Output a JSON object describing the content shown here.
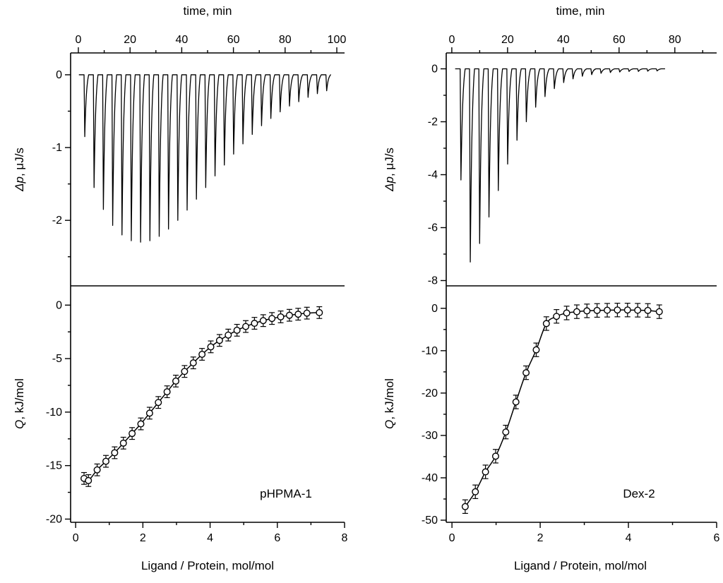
{
  "panel_labels": [
    "pHPMA-1",
    "Dex-2"
  ],
  "chart_data": [
    {
      "id": "pHPMA-1-thermogram",
      "type": "line",
      "xlabel": "time, min",
      "ylabel_italic": "Δp",
      "ylabel_rest": ", μJ/s",
      "xlim": [
        -3,
        103
      ],
      "xticks": [
        0,
        20,
        40,
        60,
        80,
        100
      ],
      "xminor": [
        10,
        30,
        50,
        70,
        90
      ],
      "ylim": [
        0.3,
        -2.9
      ],
      "yticks": [
        0,
        -1,
        -2
      ],
      "yminor": [
        -0.5,
        -1.5,
        -2.5
      ],
      "baseline": 0,
      "trace_start": 0.2,
      "trace_end": 97.5,
      "peak_start": 2.2,
      "peak_spacing": 3.6,
      "peak_depths": [
        -0.85,
        -1.55,
        -1.85,
        -2.07,
        -2.2,
        -2.28,
        -2.3,
        -2.28,
        -2.22,
        -2.12,
        -2.0,
        -1.86,
        -1.71,
        -1.55,
        -1.39,
        -1.24,
        -1.09,
        -0.95,
        -0.82,
        -0.7,
        -0.6,
        -0.51,
        -0.43,
        -0.37,
        -0.31,
        -0.26,
        -0.22
      ]
    },
    {
      "id": "pHPMA-1-binding",
      "type": "scatter",
      "marker": "open-circle",
      "xlabel": "Ligand / Protein, mol/mol",
      "ylabel_italic": "Q",
      "ylabel_rest": ", kJ/mol",
      "xlim": [
        -0.15,
        8.0
      ],
      "xticks": [
        0,
        2,
        4,
        6,
        8
      ],
      "xminor": [
        1,
        3,
        5,
        7
      ],
      "ylim": [
        1.8,
        -20.3
      ],
      "yticks": [
        0,
        -5,
        -10,
        -15,
        -20
      ],
      "yminor": [
        -2.5,
        -7.5,
        -12.5,
        -17.5
      ],
      "yerr": 0.55,
      "x": [
        0.25,
        0.38,
        0.64,
        0.9,
        1.16,
        1.42,
        1.68,
        1.94,
        2.2,
        2.46,
        2.72,
        2.98,
        3.24,
        3.5,
        3.76,
        4.02,
        4.28,
        4.54,
        4.8,
        5.06,
        5.32,
        5.58,
        5.84,
        6.1,
        6.36,
        6.62,
        6.88,
        7.25
      ],
      "y": [
        -16.2,
        -16.4,
        -15.4,
        -14.6,
        -13.8,
        -12.9,
        -12.0,
        -11.1,
        -10.1,
        -9.1,
        -8.1,
        -7.1,
        -6.2,
        -5.4,
        -4.6,
        -3.9,
        -3.3,
        -2.8,
        -2.35,
        -2.0,
        -1.7,
        -1.45,
        -1.25,
        -1.1,
        -0.95,
        -0.85,
        -0.75,
        -0.7
      ]
    },
    {
      "id": "Dex-2-thermogram",
      "type": "line",
      "xlabel": "time, min",
      "ylabel_italic": "Δp",
      "ylabel_rest": ", μJ/s",
      "xlim": [
        -2,
        95
      ],
      "xticks": [
        0,
        20,
        40,
        60,
        80
      ],
      "xminor": [
        10,
        30,
        50,
        70,
        90
      ],
      "ylim": [
        0.6,
        -8.2
      ],
      "yticks": [
        0,
        -2,
        -4,
        -6,
        -8
      ],
      "yminor": [
        -1,
        -3,
        -5,
        -7
      ],
      "baseline": 0,
      "trace_start": 1.2,
      "trace_end": 76.5,
      "peak_start": 3.0,
      "peak_spacing": 3.35,
      "peak_depths": [
        -4.2,
        -7.3,
        -6.6,
        -5.6,
        -4.6,
        -3.6,
        -2.7,
        -2.0,
        -1.45,
        -1.05,
        -0.75,
        -0.52,
        -0.38,
        -0.28,
        -0.22,
        -0.17,
        -0.14,
        -0.12,
        -0.1,
        -0.1,
        -0.09,
        -0.08
      ]
    },
    {
      "id": "Dex-2-binding",
      "type": "scatter",
      "marker": "open-circle",
      "xlabel": "Ligand / Protein, mol/mol",
      "ylabel_italic": "Q",
      "ylabel_rest": ", kJ/mol",
      "xlim": [
        -0.13,
        6.0
      ],
      "xticks": [
        0,
        2,
        4,
        6
      ],
      "xminor": [
        1,
        3,
        5
      ],
      "ylim": [
        5.3,
        -50.5
      ],
      "yticks": [
        0,
        -10,
        -20,
        -30,
        -40,
        -50
      ],
      "yminor": [
        -5,
        -15,
        -25,
        -35,
        -45
      ],
      "yerr": 1.6,
      "x": [
        0.3,
        0.53,
        0.76,
        0.99,
        1.22,
        1.45,
        1.68,
        1.91,
        2.14,
        2.37,
        2.6,
        2.83,
        3.06,
        3.29,
        3.52,
        3.75,
        3.98,
        4.21,
        4.44,
        4.7
      ],
      "y": [
        -46.8,
        -43.3,
        -38.6,
        -34.9,
        -29.2,
        -22.1,
        -15.2,
        -9.8,
        -3.6,
        -1.9,
        -1.1,
        -0.8,
        -0.6,
        -0.5,
        -0.45,
        -0.4,
        -0.4,
        -0.45,
        -0.5,
        -0.8
      ]
    }
  ]
}
